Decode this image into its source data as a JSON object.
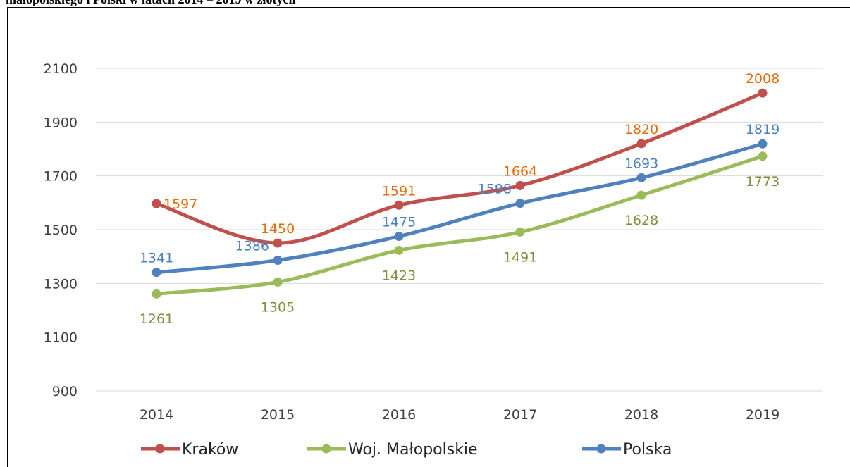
{
  "chart_data": {
    "type": "line",
    "title": "małopolskiego i Polski w latach 2014 – 2019 w złotych",
    "categories": [
      "2014",
      "2015",
      "2016",
      "2017",
      "2018",
      "2019"
    ],
    "series": [
      {
        "name": "Kraków",
        "color": "#c0504d",
        "label_color": "#e46c0a",
        "values": [
          1597,
          1450,
          1591,
          1664,
          1820,
          2008
        ]
      },
      {
        "name": "Woj. Małopolskie",
        "color": "#9bbb59",
        "label_color": "#77933c",
        "values": [
          1261,
          1305,
          1423,
          1491,
          1628,
          1773
        ]
      },
      {
        "name": "Polska",
        "color": "#4f81bd",
        "label_color": "#4f81bd",
        "values": [
          1341,
          1386,
          1475,
          1598,
          1693,
          1819
        ]
      }
    ],
    "ylim": [
      900,
      2100
    ],
    "yticks": [
      900,
      1100,
      1300,
      1500,
      1700,
      1900,
      2100
    ],
    "grid": true,
    "legend": "bottom"
  }
}
